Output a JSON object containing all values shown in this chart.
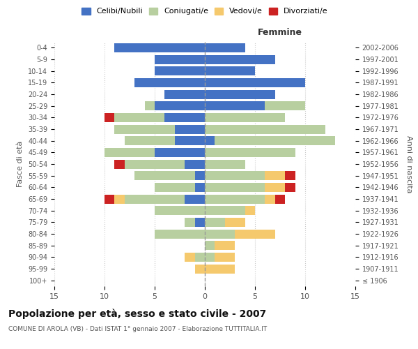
{
  "age_groups": [
    "100+",
    "95-99",
    "90-94",
    "85-89",
    "80-84",
    "75-79",
    "70-74",
    "65-69",
    "60-64",
    "55-59",
    "50-54",
    "45-49",
    "40-44",
    "35-39",
    "30-34",
    "25-29",
    "20-24",
    "15-19",
    "10-14",
    "5-9",
    "0-4"
  ],
  "birth_years": [
    "≤ 1906",
    "1907-1911",
    "1912-1916",
    "1917-1921",
    "1922-1926",
    "1927-1931",
    "1932-1936",
    "1937-1941",
    "1942-1946",
    "1947-1951",
    "1952-1956",
    "1957-1961",
    "1962-1966",
    "1967-1971",
    "1972-1976",
    "1977-1981",
    "1982-1986",
    "1987-1991",
    "1992-1996",
    "1997-2001",
    "2002-2006"
  ],
  "male": {
    "celibi": [
      0,
      0,
      0,
      0,
      0,
      1,
      0,
      2,
      1,
      1,
      2,
      5,
      3,
      3,
      4,
      5,
      4,
      7,
      5,
      5,
      9
    ],
    "coniugati": [
      0,
      0,
      1,
      0,
      5,
      1,
      5,
      6,
      4,
      6,
      6,
      5,
      5,
      6,
      5,
      1,
      0,
      0,
      0,
      0,
      0
    ],
    "vedovi": [
      0,
      1,
      1,
      0,
      0,
      0,
      0,
      1,
      0,
      0,
      0,
      0,
      0,
      0,
      0,
      0,
      0,
      0,
      0,
      0,
      0
    ],
    "divorziati": [
      0,
      0,
      0,
      0,
      0,
      0,
      0,
      1,
      0,
      0,
      1,
      0,
      0,
      0,
      1,
      0,
      0,
      0,
      0,
      0,
      0
    ]
  },
  "female": {
    "nubili": [
      0,
      0,
      0,
      0,
      0,
      0,
      0,
      0,
      0,
      0,
      0,
      0,
      1,
      0,
      0,
      6,
      7,
      10,
      5,
      7,
      4
    ],
    "coniugate": [
      0,
      0,
      1,
      1,
      3,
      2,
      4,
      6,
      6,
      6,
      4,
      9,
      12,
      12,
      8,
      4,
      0,
      0,
      0,
      0,
      0
    ],
    "vedove": [
      0,
      3,
      2,
      2,
      4,
      2,
      1,
      1,
      2,
      2,
      0,
      0,
      0,
      0,
      0,
      0,
      0,
      0,
      0,
      0,
      0
    ],
    "divorziate": [
      0,
      0,
      0,
      0,
      0,
      0,
      0,
      1,
      1,
      1,
      0,
      0,
      0,
      0,
      0,
      0,
      0,
      0,
      0,
      0,
      0
    ]
  },
  "colors": {
    "celibi": "#4472c4",
    "coniugati": "#b8cfa0",
    "vedovi": "#f5c96d",
    "divorziati": "#cc2222"
  },
  "title": "Popolazione per età, sesso e stato civile - 2007",
  "subtitle": "COMUNE DI AROLA (VB) - Dati ISTAT 1° gennaio 2007 - Elaborazione TUTTITALIA.IT",
  "xlabel_right": "Femmine",
  "ylabel_left": "Fasce di età",
  "ylabel_right": "Anni di nascita",
  "xlim": 15,
  "legend_labels": [
    "Celibi/Nubili",
    "Coniugati/e",
    "Vedovi/e",
    "Divorziati/e"
  ],
  "background_color": "#ffffff"
}
